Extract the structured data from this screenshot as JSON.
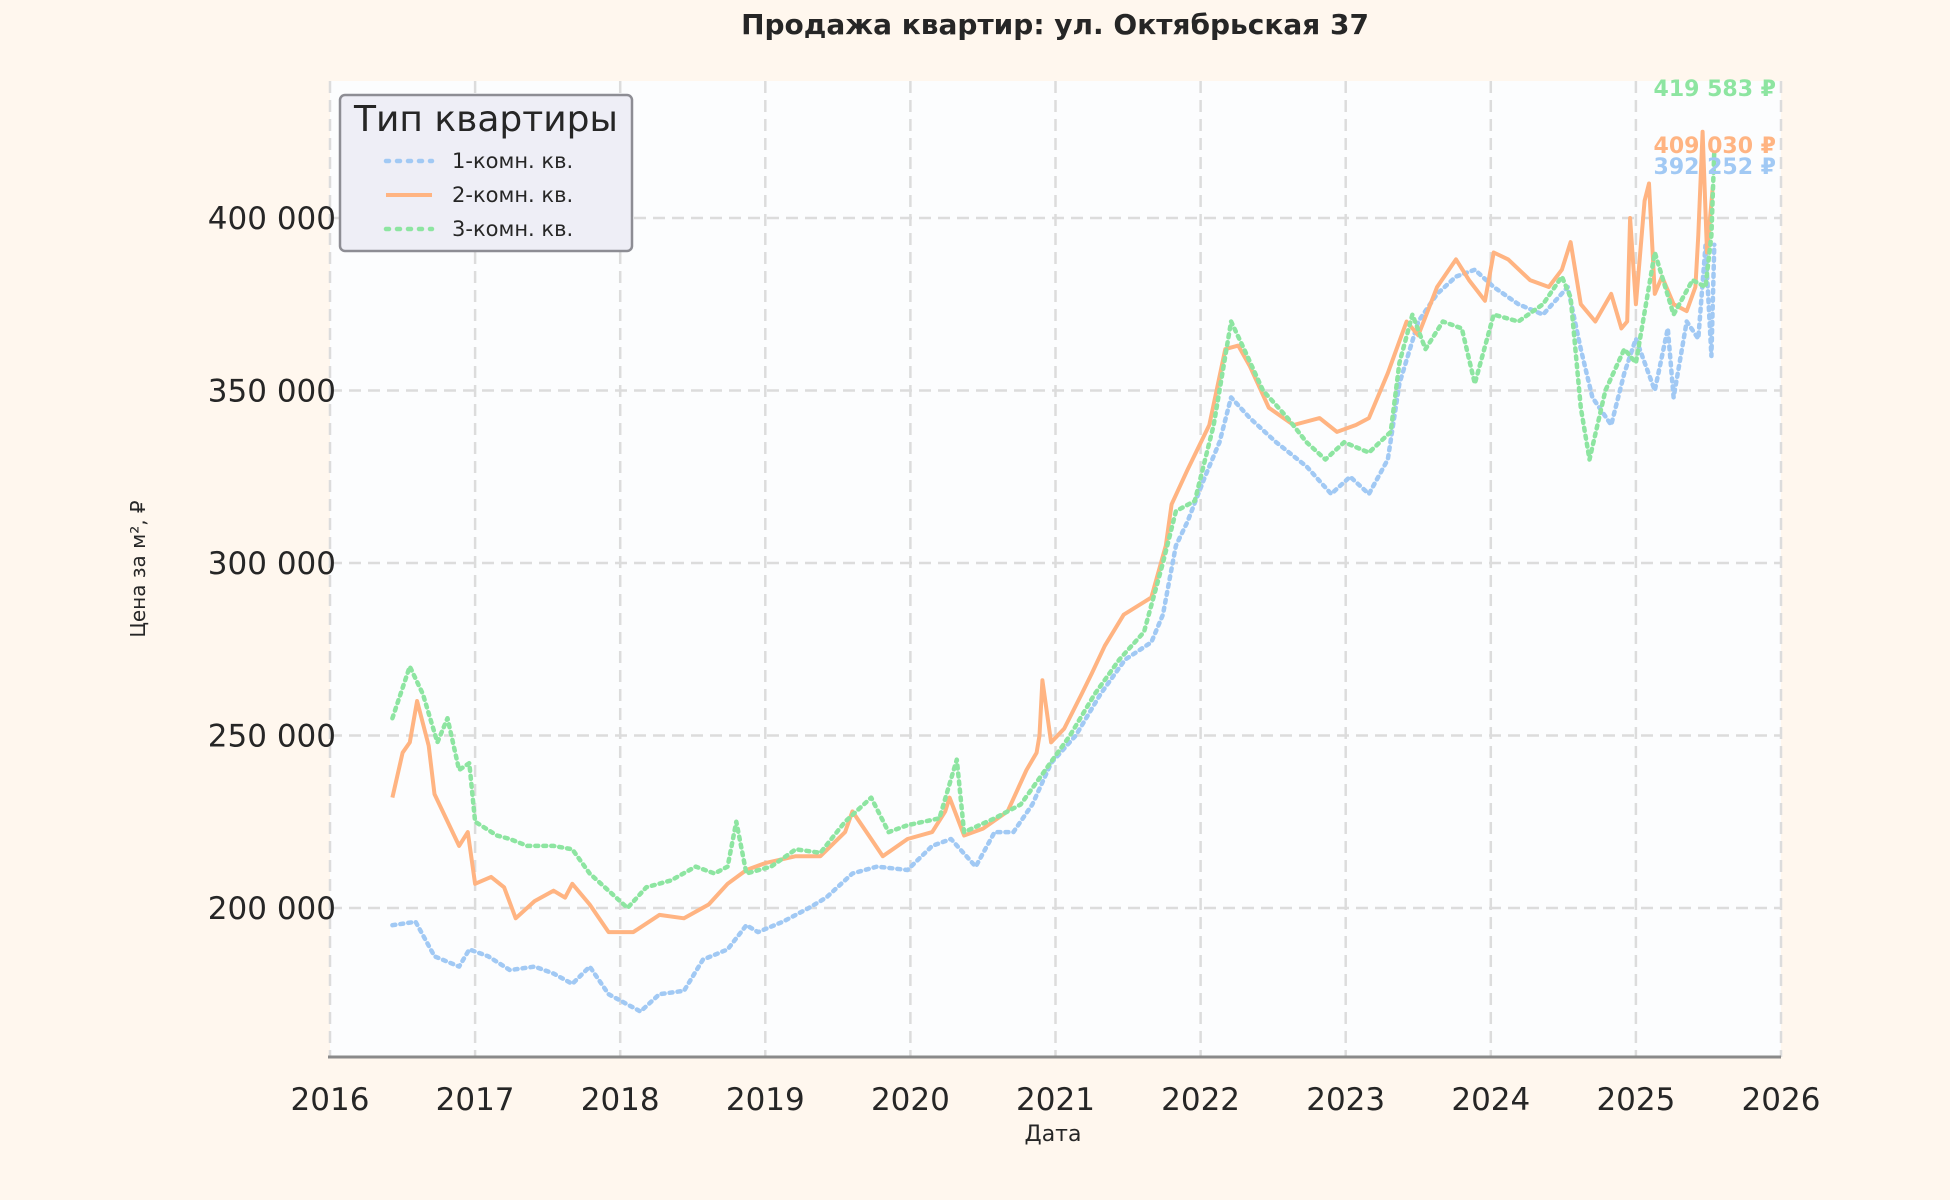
{
  "chart_data": {
    "type": "line",
    "title": "Продажа квартир: ул. Октябрьская 37",
    "xlabel": "Дата",
    "ylabel": "Цена за м², ₽",
    "xlim": [
      2016,
      2026
    ],
    "ylim": [
      156800,
      439700
    ],
    "x_ticks": [
      2016,
      2017,
      2018,
      2019,
      2020,
      2021,
      2022,
      2023,
      2024,
      2025,
      2026
    ],
    "x_tick_labels": [
      "2016",
      "2017",
      "2018",
      "2019",
      "2020",
      "2021",
      "2022",
      "2023",
      "2024",
      "2025",
      "2026"
    ],
    "y_ticks": [
      200000,
      250000,
      300000,
      350000,
      400000
    ],
    "y_tick_labels": [
      "200 000",
      "250 000",
      "300 000",
      "350 000",
      "400 000"
    ],
    "grid": true,
    "legend": {
      "title": "Тип квартиры",
      "placement": "top-left"
    },
    "series": [
      {
        "name": "1-комн. кв.",
        "color": "#a1c9f4",
        "style": "dotted",
        "last_label": "392 252 ₽",
        "x": [
          2016.43,
          2016.59,
          2016.72,
          2016.89,
          2016.96,
          2017.09,
          2017.24,
          2017.41,
          2017.54,
          2017.67,
          2017.79,
          2017.92,
          2018.14,
          2018.27,
          2018.44,
          2018.57,
          2018.74,
          2018.87,
          2018.95,
          2019.12,
          2019.3,
          2019.42,
          2019.6,
          2019.77,
          2019.98,
          2020.15,
          2020.28,
          2020.45,
          2020.58,
          2020.71,
          2020.84,
          2020.97,
          2021.14,
          2021.31,
          2021.48,
          2021.66,
          2021.74,
          2021.83,
          2021.91,
          2022.03,
          2022.13,
          2022.21,
          2022.34,
          2022.52,
          2022.73,
          2022.9,
          2023.03,
          2023.16,
          2023.29,
          2023.37,
          2023.5,
          2023.63,
          2023.76,
          2023.89,
          2024.02,
          2024.19,
          2024.36,
          2024.53,
          2024.62,
          2024.7,
          2024.83,
          2024.92,
          2025.0,
          2025.13,
          2025.22,
          2025.26,
          2025.35,
          2025.43,
          2025.48,
          2025.52,
          2025.54
        ],
        "y": [
          195000,
          196000,
          186000,
          183000,
          188000,
          186000,
          182000,
          183000,
          181000,
          178000,
          183000,
          175000,
          170000,
          175000,
          176000,
          185000,
          188000,
          195000,
          193000,
          196000,
          200000,
          203000,
          210000,
          212000,
          211000,
          218000,
          220000,
          212000,
          222000,
          222000,
          230000,
          242000,
          250000,
          262000,
          272000,
          277000,
          285000,
          305000,
          312000,
          325000,
          335000,
          348000,
          342000,
          335000,
          328000,
          320000,
          325000,
          320000,
          330000,
          352000,
          370000,
          378000,
          383000,
          385000,
          380000,
          375000,
          372000,
          380000,
          362000,
          348000,
          340000,
          355000,
          365000,
          350000,
          368000,
          348000,
          370000,
          365000,
          392000,
          360000,
          392252
        ]
      },
      {
        "name": "2-комн. кв.",
        "color": "#ffb482",
        "style": "solid",
        "last_label": "409 030 ₽",
        "x": [
          2016.43,
          2016.5,
          2016.55,
          2016.6,
          2016.68,
          2016.72,
          2016.89,
          2016.95,
          2017.0,
          2017.11,
          2017.2,
          2017.28,
          2017.41,
          2017.54,
          2017.62,
          2017.67,
          2017.79,
          2017.92,
          2018.09,
          2018.27,
          2018.44,
          2018.61,
          2018.74,
          2018.87,
          2019.0,
          2019.21,
          2019.38,
          2019.55,
          2019.6,
          2019.73,
          2019.81,
          2019.98,
          2020.15,
          2020.24,
          2020.27,
          2020.37,
          2020.5,
          2020.67,
          2020.8,
          2020.87,
          2020.89,
          2020.91,
          2020.97,
          2021.06,
          2021.18,
          2021.25,
          2021.34,
          2021.47,
          2021.66,
          2021.76,
          2021.8,
          2021.91,
          2022.06,
          2022.17,
          2022.26,
          2022.34,
          2022.47,
          2022.64,
          2022.82,
          2022.94,
          2023.07,
          2023.16,
          2023.29,
          2023.42,
          2023.5,
          2023.63,
          2023.76,
          2023.85,
          2023.96,
          2024.02,
          2024.12,
          2024.27,
          2024.4,
          2024.49,
          2024.55,
          2024.62,
          2024.72,
          2024.83,
          2024.9,
          2024.94,
          2024.96,
          2025.0,
          2025.06,
          2025.09,
          2025.13,
          2025.18,
          2025.26,
          2025.35,
          2025.41,
          2025.43,
          2025.46,
          2025.49,
          2025.53
        ],
        "y": [
          232000,
          245000,
          248000,
          260000,
          247000,
          233000,
          218000,
          222000,
          207000,
          209000,
          206000,
          197000,
          202000,
          205000,
          203000,
          207000,
          201000,
          193000,
          193000,
          198000,
          197000,
          201000,
          207000,
          211000,
          213000,
          215000,
          215000,
          222000,
          228000,
          220000,
          215000,
          220000,
          222000,
          228000,
          232000,
          221000,
          223000,
          228000,
          240000,
          245000,
          250000,
          266000,
          248000,
          252000,
          262000,
          268000,
          276000,
          285000,
          290000,
          305000,
          317000,
          327000,
          340000,
          362000,
          363000,
          357000,
          345000,
          340000,
          342000,
          338000,
          340000,
          342000,
          355000,
          370000,
          366000,
          380000,
          388000,
          382000,
          376000,
          390000,
          388000,
          382000,
          380000,
          385000,
          393000,
          375000,
          370000,
          378000,
          368000,
          370000,
          400000,
          375000,
          405000,
          410000,
          378000,
          383000,
          375000,
          373000,
          380000,
          395000,
          425000,
          390000,
          409030
        ]
      },
      {
        "name": "3-комн. кв.",
        "color": "#8de5a1",
        "style": "dotted",
        "last_label": "419 583 ₽",
        "x": [
          2016.43,
          2016.55,
          2016.64,
          2016.74,
          2016.81,
          2016.89,
          2016.96,
          2017.0,
          2017.15,
          2017.24,
          2017.36,
          2017.54,
          2017.67,
          2017.79,
          2017.92,
          2018.05,
          2018.18,
          2018.35,
          2018.52,
          2018.65,
          2018.74,
          2018.8,
          2018.87,
          2019.04,
          2019.21,
          2019.38,
          2019.55,
          2019.73,
          2019.85,
          2019.98,
          2020.2,
          2020.32,
          2020.37,
          2020.58,
          2020.76,
          2020.93,
          2021.1,
          2021.27,
          2021.44,
          2021.61,
          2021.74,
          2021.83,
          2021.96,
          2022.09,
          2022.21,
          2022.3,
          2022.43,
          2022.6,
          2022.73,
          2022.86,
          2022.99,
          2023.16,
          2023.31,
          2023.37,
          2023.46,
          2023.55,
          2023.67,
          2023.8,
          2023.89,
          2024.02,
          2024.19,
          2024.36,
          2024.49,
          2024.55,
          2024.62,
          2024.68,
          2024.79,
          2024.92,
          2025.0,
          2025.13,
          2025.26,
          2025.39,
          2025.48,
          2025.52,
          2025.54
        ],
        "y": [
          255000,
          270000,
          262000,
          248000,
          255000,
          240000,
          242000,
          225000,
          221000,
          220000,
          218000,
          218000,
          217000,
          210000,
          205000,
          200000,
          206000,
          208000,
          212000,
          210000,
          212000,
          225000,
          210000,
          212000,
          217000,
          216000,
          225000,
          232000,
          222000,
          224000,
          226000,
          243000,
          222000,
          226000,
          230000,
          240000,
          250000,
          262000,
          272000,
          280000,
          300000,
          315000,
          318000,
          340000,
          370000,
          362000,
          350000,
          342000,
          335000,
          330000,
          335000,
          332000,
          338000,
          358000,
          372000,
          362000,
          370000,
          368000,
          352000,
          372000,
          370000,
          375000,
          383000,
          377000,
          345000,
          330000,
          350000,
          362000,
          358000,
          390000,
          372000,
          382000,
          380000,
          395000,
          419583
        ]
      }
    ]
  }
}
